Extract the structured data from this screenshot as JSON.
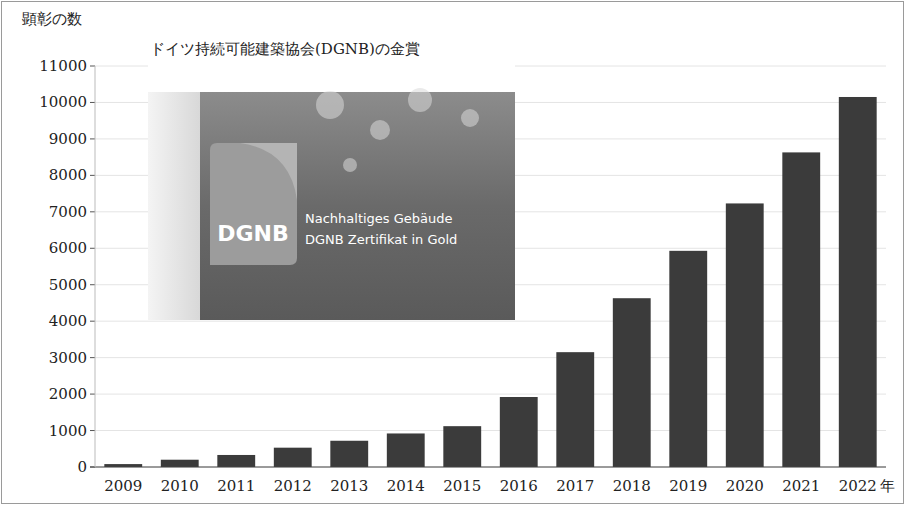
{
  "chart_data": {
    "type": "bar",
    "title": "ドイツ持続可能建築協会(DGNB)の金賞",
    "y_label": "顕彰の数",
    "x_label": "年",
    "annotations": [
      "DGNB",
      "Nachhaltiges Gebäude",
      "DGNB Zertifikat in Gold"
    ],
    "categories": [
      "2009",
      "2010",
      "2011",
      "2012",
      "2013",
      "2014",
      "2015",
      "2016",
      "2017",
      "2018",
      "2019",
      "2020",
      "2021",
      "2022"
    ],
    "values": [
      80,
      200,
      330,
      530,
      720,
      920,
      1120,
      1920,
      3150,
      4630,
      5930,
      7230,
      8630,
      10150
    ],
    "color": "#3b3b3b",
    "ylim": [
      0,
      11000
    ],
    "yticks": [
      0,
      1000,
      2000,
      3000,
      4000,
      5000,
      6000,
      7000,
      8000,
      9000,
      10000,
      11000
    ],
    "grid": true
  }
}
